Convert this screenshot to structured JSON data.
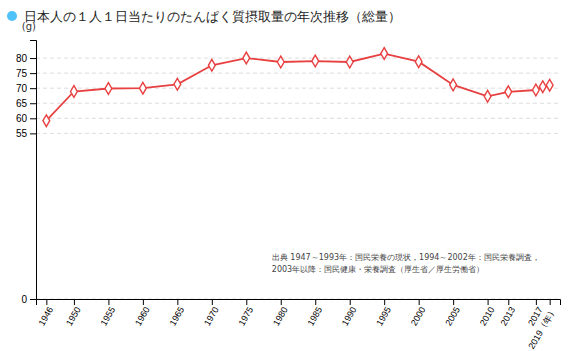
{
  "chart_data": {
    "type": "line",
    "title": "日本人の１人１日当たりのたんぱく質摂取量の年次推移（総量）",
    "ylabel": "(g)",
    "annotation": "出典 1947～1993年：国民栄養の現状，1994～2002年：国民栄養調査，\n2003年以降：国民健康・栄養調査（厚生省／厚生労働省）",
    "x": [
      1946,
      1950,
      1955,
      1960,
      1965,
      1970,
      1975,
      1980,
      1985,
      1990,
      1995,
      2000,
      2005,
      2010,
      2013,
      2017,
      2018,
      2019
    ],
    "values": [
      59.2,
      68.9,
      69.9,
      70.0,
      71.3,
      77.6,
      80.0,
      78.7,
      79.0,
      78.7,
      81.5,
      78.8,
      71.1,
      67.3,
      68.8,
      69.4,
      70.5,
      71.0
    ],
    "color": "#e84040",
    "marker": "diamond",
    "xlim": [
      1944.5,
      2020.5
    ],
    "xticks": [
      1946,
      1950,
      1955,
      1960,
      1965,
      1970,
      1975,
      1980,
      1985,
      1990,
      1995,
      2000,
      2005,
      2010,
      2013,
      2017,
      {
        "value": 2019,
        "label": "2019（年）"
      }
    ],
    "ylim": [
      0,
      86
    ],
    "yticks": [
      0,
      55,
      60,
      65,
      70,
      75,
      80
    ],
    "grid": true
  }
}
